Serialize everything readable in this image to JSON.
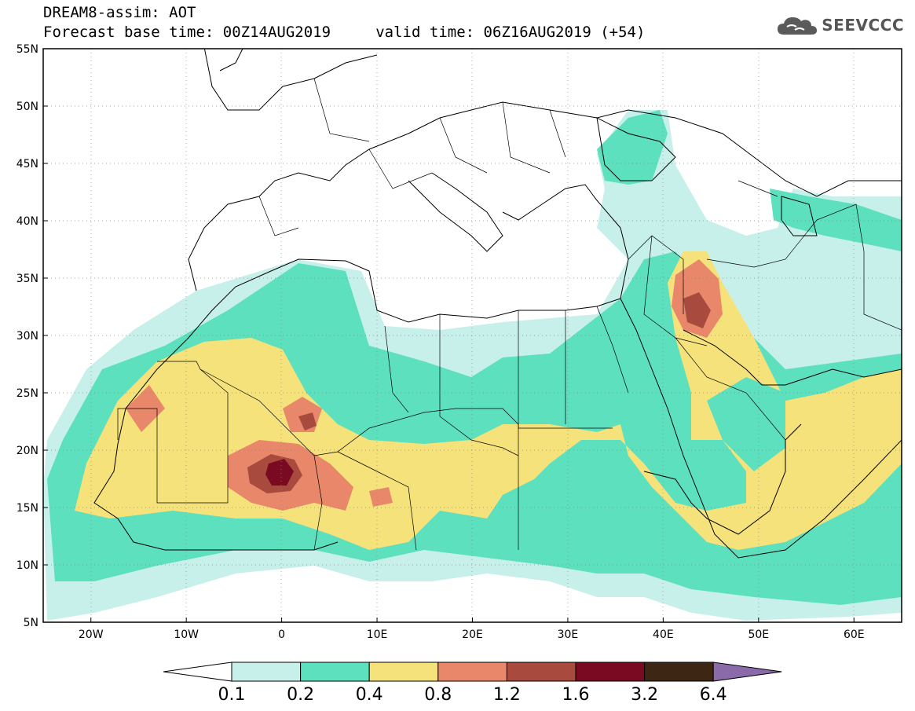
{
  "header": {
    "title_line1": "DREAM8-assim: AOT",
    "title_line2": "Forecast base time: 00Z14AUG2019     valid time: 06Z16AUG2019 (+54)"
  },
  "logo": {
    "text": "SEEVCCC",
    "icon": "cloud-icon",
    "color": "#5a5a5a"
  },
  "map": {
    "projection": "lat-lon",
    "lon_range": [
      -25,
      65
    ],
    "lat_range": [
      5,
      55
    ],
    "lon_ticks": [
      {
        "value": -20,
        "label": "20W"
      },
      {
        "value": -10,
        "label": "10W"
      },
      {
        "value": 0,
        "label": "0"
      },
      {
        "value": 10,
        "label": "10E"
      },
      {
        "value": 20,
        "label": "20E"
      },
      {
        "value": 30,
        "label": "30E"
      },
      {
        "value": 40,
        "label": "40E"
      },
      {
        "value": 50,
        "label": "50E"
      },
      {
        "value": 60,
        "label": "60E"
      }
    ],
    "lat_ticks": [
      {
        "value": 55,
        "label": "55N"
      },
      {
        "value": 50,
        "label": "50N"
      },
      {
        "value": 45,
        "label": "45N"
      },
      {
        "value": 40,
        "label": "40N"
      },
      {
        "value": 35,
        "label": "35N"
      },
      {
        "value": 30,
        "label": "30N"
      },
      {
        "value": 25,
        "label": "25N"
      },
      {
        "value": 20,
        "label": "20N"
      },
      {
        "value": 15,
        "label": "15N"
      },
      {
        "value": 10,
        "label": "10N"
      },
      {
        "value": 5,
        "label": "5N"
      }
    ],
    "grid": "dotted",
    "colorbar": {
      "levels": [
        "0.1",
        "0.2",
        "0.4",
        "0.8",
        "1.2",
        "1.6",
        "3.2",
        "6.4"
      ],
      "colors": [
        "#ffffff",
        "#c8f0ea",
        "#5de0be",
        "#f5e27a",
        "#e8876a",
        "#a84a3e",
        "#7a0a22",
        "#3e2614",
        "#8a6aa8"
      ]
    }
  }
}
